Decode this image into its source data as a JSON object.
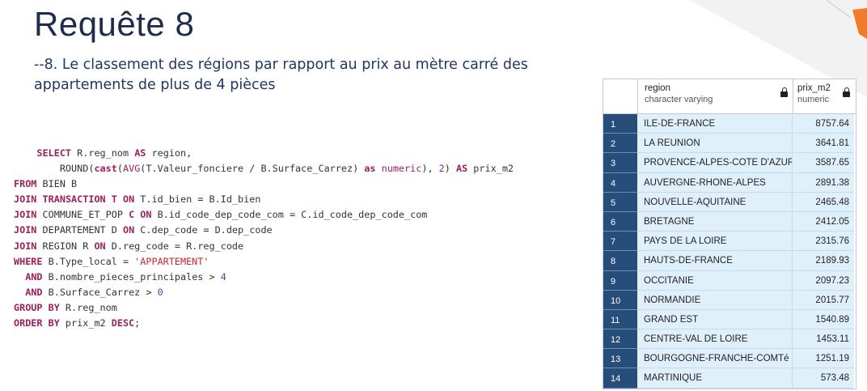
{
  "slide": {
    "title": "Requête 8",
    "subtitle": "--8. Le classement des régions par rapport au prix au mètre carré des appartements de plus de 4 pièces"
  },
  "sql": {
    "l1_kw": "SELECT",
    "l1_rest": " R.reg_nom ",
    "l1_as": "AS",
    "l1_tail": " region,",
    "l2_round": "ROUND(",
    "l2_cast": "cast",
    "l2_p1": "(",
    "l2_avg": "AVG",
    "l2_p2": "(T.Valeur_fonciere / B.Surface_Carrez) ",
    "l2_as": "as",
    "l2_sp": " ",
    "l2_numeric": "numeric",
    "l2_p3": "), ",
    "l2_two": "2",
    "l2_p4": ") ",
    "l2_as2": "AS",
    "l2_tail": " prix_m2",
    "l3_kw": "FROM",
    "l3_rest": " BIEN B",
    "l4_kw1": "JOIN",
    "l4_mid": " ",
    "l4_tbl": "TRANSACTION T",
    "l4_sp": " ",
    "l4_on": "ON",
    "l4_rest": " T.id_bien = B.Id_bien",
    "l5_kw1": "JOIN",
    "l5_mid": " COMMUNE_ET_POP ",
    "l5_c": "C",
    "l5_sp": " ",
    "l5_on": "ON",
    "l5_rest": " B.id_code_dep_code_com = C.id_code_dep_code_com",
    "l6_kw1": "JOIN",
    "l6_mid": " DEPARTEMENT D ",
    "l6_on": "ON",
    "l6_rest": " C.dep_code = D.dep_code",
    "l7_kw1": "JOIN",
    "l7_mid": " REGION R ",
    "l7_on": "ON",
    "l7_rest": " D.reg_code = R.reg_code",
    "l8_kw": "WHERE",
    "l8_rest": " B.Type_local = ",
    "l8_str": "'APPARTEMENT'",
    "l9_kw": "AND",
    "l9_rest": " B.nombre_pieces_principales > ",
    "l9_num": "4",
    "l10_kw": "AND",
    "l10_rest": " B.Surface_Carrez > ",
    "l10_num": "0",
    "l11_kw": "GROUP BY",
    "l11_rest": " R.reg_nom",
    "l12_kw": "ORDER BY",
    "l12_rest": " prix_m2 ",
    "l12_desc": "DESC",
    "l12_end": ";"
  },
  "grid": {
    "columns": [
      {
        "name": "region",
        "type": "character varying"
      },
      {
        "name": "prix_m2",
        "type": "numeric"
      }
    ],
    "rows": [
      {
        "idx": "1",
        "region": "ILE-DE-FRANCE",
        "prix": "8757.64"
      },
      {
        "idx": "2",
        "region": "LA REUNION",
        "prix": "3641.81"
      },
      {
        "idx": "3",
        "region": "PROVENCE-ALPES-COTE D'AZUR",
        "prix": "3587.65"
      },
      {
        "idx": "4",
        "region": "AUVERGNE-RHONE-ALPES",
        "prix": "2891.38"
      },
      {
        "idx": "5",
        "region": "NOUVELLE-AQUITAINE",
        "prix": "2465.48"
      },
      {
        "idx": "6",
        "region": "BRETAGNE",
        "prix": "2412.05"
      },
      {
        "idx": "7",
        "region": "PAYS DE LA LOIRE",
        "prix": "2315.76"
      },
      {
        "idx": "8",
        "region": "HAUTS-DE-FRANCE",
        "prix": "2189.93"
      },
      {
        "idx": "9",
        "region": "OCCITANIE",
        "prix": "2097.23"
      },
      {
        "idx": "10",
        "region": "NORMANDIE",
        "prix": "2015.77"
      },
      {
        "idx": "11",
        "region": "GRAND EST",
        "prix": "1540.89"
      },
      {
        "idx": "12",
        "region": "CENTRE-VAL DE LOIRE",
        "prix": "1453.11"
      },
      {
        "idx": "13",
        "region": "BOURGOGNE-FRANCHE-COMTé",
        "prix": "1251.19"
      },
      {
        "idx": "14",
        "region": "MARTINIQUE",
        "prix": "573.48"
      }
    ]
  },
  "colors": {
    "title": "#1f2d4d",
    "keyword": "#9c1f5a",
    "row_index_bg": "#274d7a",
    "cell_bg": "#dff0fb"
  }
}
